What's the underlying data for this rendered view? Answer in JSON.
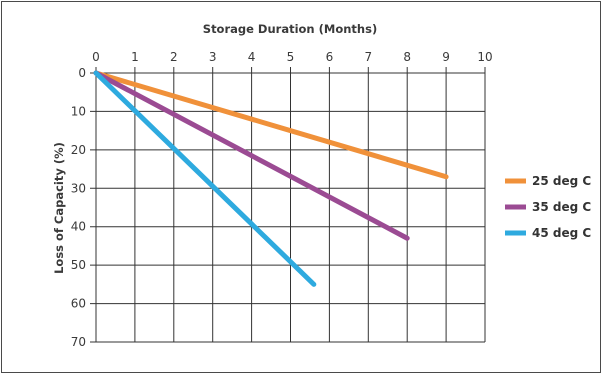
{
  "chart_data": {
    "type": "line",
    "title": "",
    "xlabel": "Storage Duration (Months)",
    "ylabel": "Loss of Capacity (%)",
    "xlim": [
      0,
      10
    ],
    "ylim": [
      0,
      70
    ],
    "x_axis_position": "top",
    "y_axis_inverted": true,
    "xticks": [
      "0",
      "1",
      "2",
      "3",
      "4",
      "5",
      "6",
      "7",
      "8",
      "9",
      "10"
    ],
    "yticks": [
      "0",
      "10",
      "20",
      "30",
      "40",
      "50",
      "60",
      "70"
    ],
    "grid": true,
    "legend_position": "right",
    "series": [
      {
        "name": "25 deg C",
        "color": "#f0913a",
        "x": [
          0,
          9
        ],
        "y": [
          0,
          27
        ]
      },
      {
        "name": "35 deg C",
        "color": "#9b4b93",
        "x": [
          0,
          8
        ],
        "y": [
          0,
          43
        ]
      },
      {
        "name": "45 deg C",
        "color": "#2eaadf",
        "x": [
          0,
          5.6
        ],
        "y": [
          0,
          55
        ]
      }
    ]
  }
}
